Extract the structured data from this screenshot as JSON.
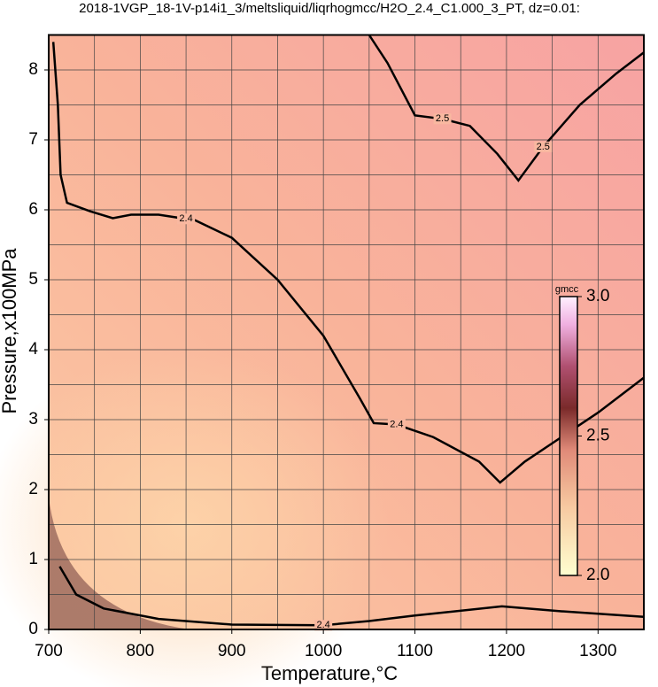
{
  "chart_data": {
    "type": "contour",
    "title": "2018-1VGP_18-1V-p14i1_3/meltsliquid/liqrhogmcc/H2O_2.4_C1.000_3_PT, dz=0.01:",
    "xlabel": "Temperature,°C",
    "ylabel": "Pressure,x100MPa",
    "xlim": [
      700,
      1350
    ],
    "ylim": [
      0,
      8.5
    ],
    "xticks": [
      700,
      800,
      900,
      1000,
      1100,
      1200,
      1300
    ],
    "yticks": [
      0,
      1,
      2,
      3,
      4,
      5,
      6,
      7,
      8
    ],
    "xgrid": [
      750,
      800,
      850,
      900,
      950,
      1000,
      1050,
      1100,
      1150,
      1200,
      1250,
      1300
    ],
    "ygrid": [
      0.5,
      1,
      1.5,
      2,
      2.5,
      3,
      3.5,
      4,
      4.5,
      5,
      5.5,
      6,
      6.5,
      7,
      7.5,
      8
    ],
    "series": [
      {
        "level": 2.4,
        "color": "#000000",
        "x": [
          705,
          710,
          713,
          720,
          745,
          770,
          790,
          820,
          860,
          900,
          950,
          1000,
          1040,
          1055,
          1080,
          1120,
          1170,
          1193,
          1220,
          1260,
          1300,
          1350
        ],
        "y": [
          8.4,
          7.5,
          6.5,
          6.1,
          5.98,
          5.88,
          5.93,
          5.93,
          5.85,
          5.6,
          5.0,
          4.2,
          3.3,
          2.95,
          2.93,
          2.75,
          2.4,
          2.1,
          2.4,
          2.75,
          3.1,
          3.6
        ],
        "label_x": [
          850,
          1080
        ]
      },
      {
        "level": 2.4,
        "color": "#000000",
        "x": [
          712,
          730,
          760,
          820,
          900,
          1000,
          1050,
          1100,
          1195,
          1260,
          1350
        ],
        "y": [
          0.9,
          0.5,
          0.3,
          0.15,
          0.07,
          0.06,
          0.12,
          0.2,
          0.33,
          0.26,
          0.18
        ],
        "label_x": [
          1000
        ]
      },
      {
        "level": 2.5,
        "color": "#000000",
        "x": [
          1050,
          1070,
          1100,
          1130,
          1160,
          1190,
          1213,
          1240,
          1280,
          1320,
          1350
        ],
        "y": [
          8.5,
          8.1,
          7.35,
          7.3,
          7.2,
          6.8,
          6.42,
          6.9,
          7.5,
          7.95,
          8.25
        ],
        "label_x": [
          1130,
          1240
        ]
      }
    ],
    "colorbar": {
      "label": "gmcc",
      "lim": [
        2.0,
        3.0
      ],
      "ticks": [
        {
          "value": 2,
          "label": "2.0"
        },
        2.5,
        {
          "value": 3,
          "label": "3.0"
        }
      ]
    }
  }
}
